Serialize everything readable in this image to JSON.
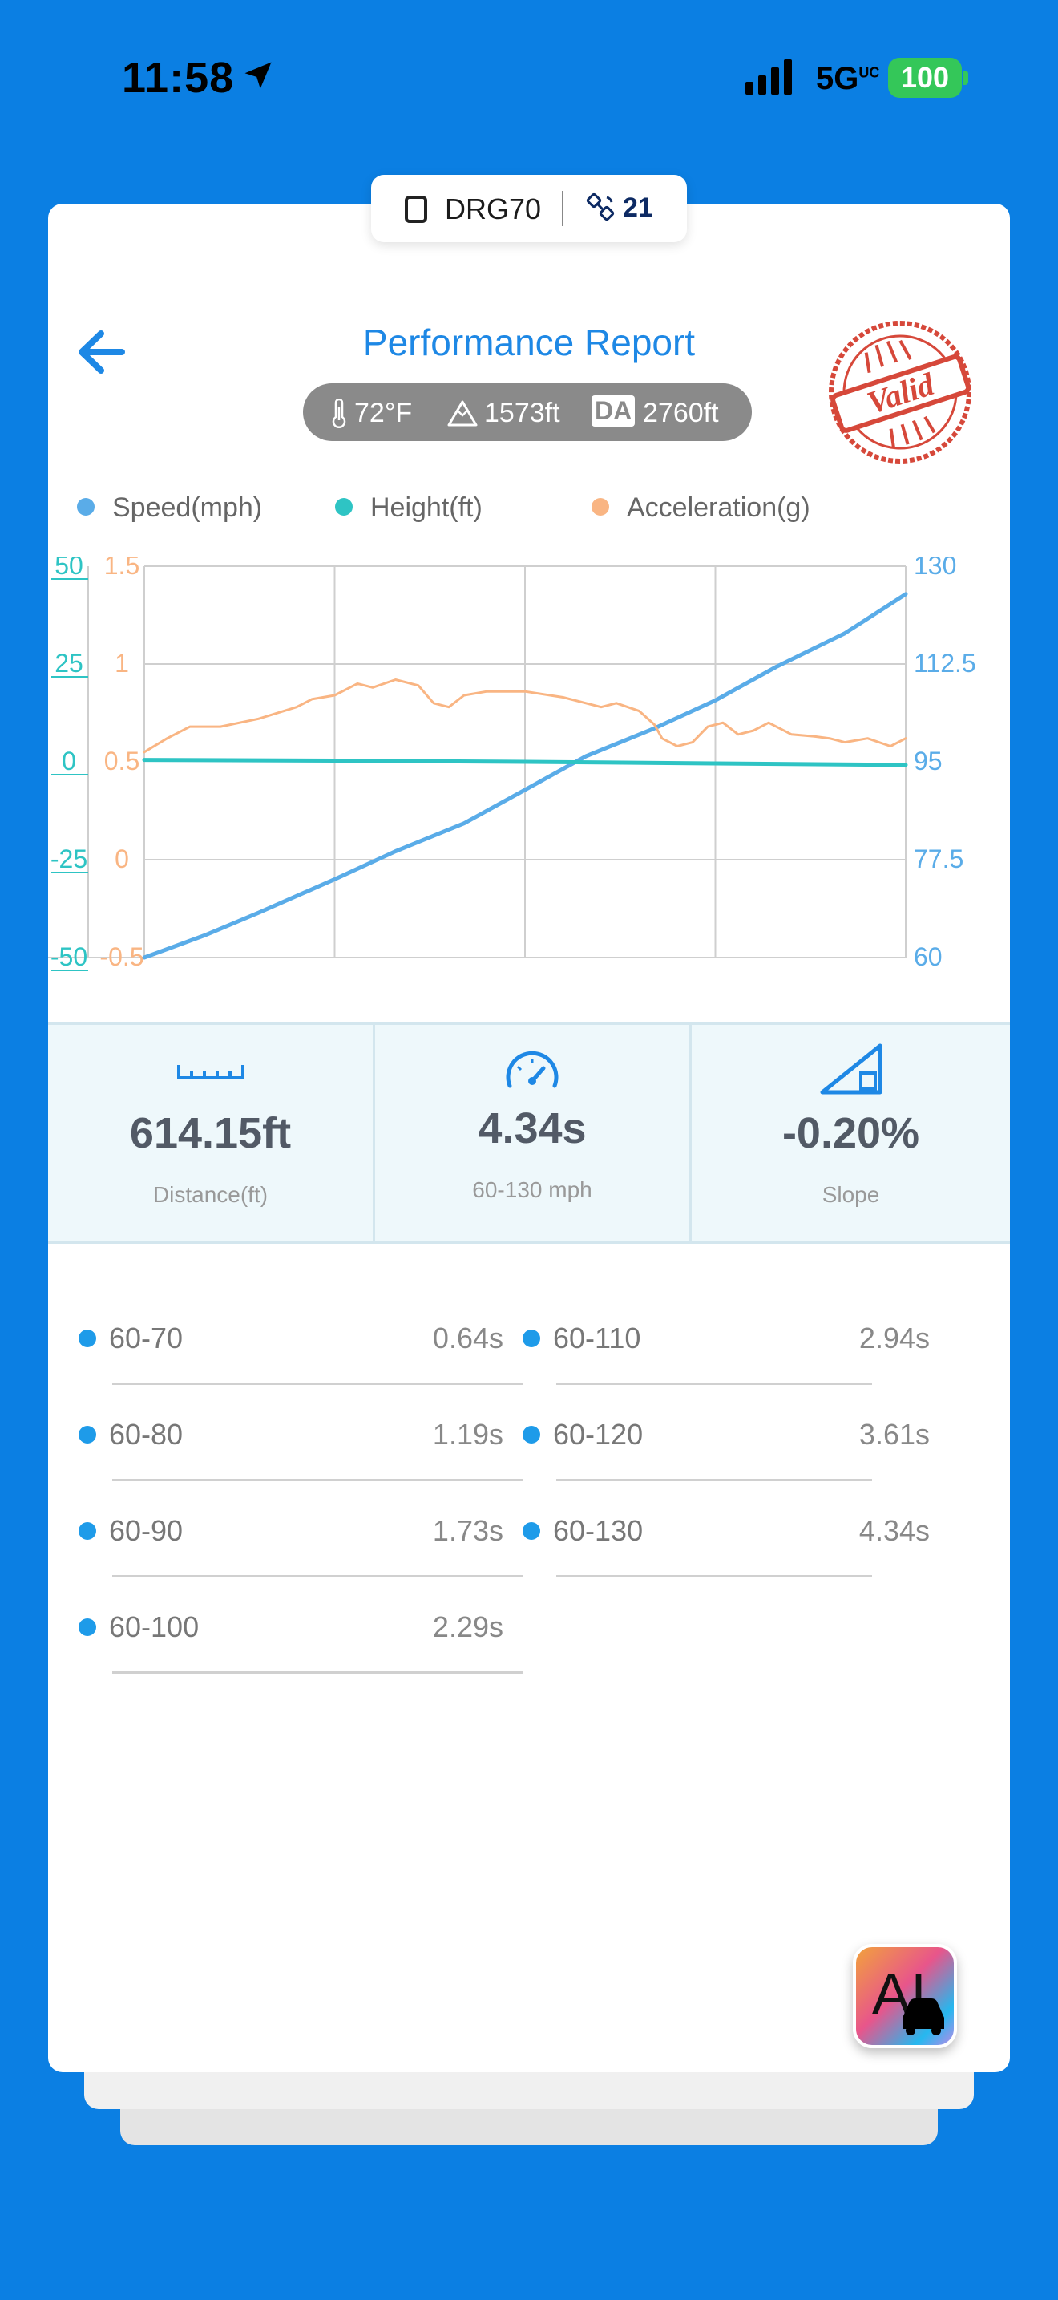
{
  "status_bar": {
    "time": "11:58",
    "network": "5G",
    "network_sup": "UC",
    "battery": "100"
  },
  "device": {
    "name": "DRG70",
    "satellites": "21"
  },
  "header": {
    "title": "Performance Report",
    "stamp_text": "Valid"
  },
  "conditions": {
    "temperature": "72°F",
    "altitude": "1573ft",
    "da_label": "DA",
    "density_altitude": "2760ft"
  },
  "legend": {
    "speed": "Speed(mph)",
    "height": "Height(ft)",
    "acceleration": "Acceleration(g)"
  },
  "colors": {
    "background": "#0B7FE3",
    "accent": "#1E88E5",
    "speed": "#5AACE8",
    "height": "#2EC4C4",
    "acceleration": "#F9B583"
  },
  "chart_data": {
    "type": "line",
    "x": [
      0.0,
      0.25,
      0.5,
      0.75,
      1.0
    ],
    "xlabel": "",
    "axes": {
      "height_left": {
        "ticks": [
          "50",
          "25",
          "0",
          "-25",
          "-50"
        ],
        "range": [
          -50,
          50
        ]
      },
      "accel_left": {
        "ticks": [
          "1.5",
          "1",
          "0.5",
          "0",
          "-0.5"
        ],
        "range": [
          -0.5,
          1.5
        ]
      },
      "speed_right": {
        "ticks": [
          "130",
          "112.5",
          "95",
          "77.5",
          "60"
        ],
        "range": [
          60,
          130
        ]
      }
    },
    "series": [
      {
        "name": "Speed(mph)",
        "axis": "speed_right",
        "values": [
          [
            0,
            60
          ],
          [
            0.08,
            64
          ],
          [
            0.15,
            68
          ],
          [
            0.25,
            74
          ],
          [
            0.33,
            79
          ],
          [
            0.42,
            84
          ],
          [
            0.5,
            90
          ],
          [
            0.58,
            96
          ],
          [
            0.67,
            101
          ],
          [
            0.75,
            106
          ],
          [
            0.83,
            112
          ],
          [
            0.92,
            118
          ],
          [
            1.0,
            125
          ]
        ]
      },
      {
        "name": "Height(ft)",
        "axis": "height_left",
        "values": [
          [
            0,
            0.5
          ],
          [
            0.25,
            0.3
          ],
          [
            0.5,
            0
          ],
          [
            0.75,
            -0.4
          ],
          [
            1.0,
            -0.8
          ]
        ]
      },
      {
        "name": "Acceleration(g)",
        "axis": "accel_left",
        "values": [
          [
            0,
            0.55
          ],
          [
            0.03,
            0.62
          ],
          [
            0.06,
            0.68
          ],
          [
            0.1,
            0.68
          ],
          [
            0.15,
            0.72
          ],
          [
            0.2,
            0.78
          ],
          [
            0.22,
            0.82
          ],
          [
            0.25,
            0.84
          ],
          [
            0.28,
            0.9
          ],
          [
            0.3,
            0.88
          ],
          [
            0.33,
            0.92
          ],
          [
            0.36,
            0.89
          ],
          [
            0.38,
            0.8
          ],
          [
            0.4,
            0.78
          ],
          [
            0.42,
            0.84
          ],
          [
            0.45,
            0.86
          ],
          [
            0.5,
            0.86
          ],
          [
            0.55,
            0.83
          ],
          [
            0.58,
            0.8
          ],
          [
            0.6,
            0.78
          ],
          [
            0.62,
            0.8
          ],
          [
            0.65,
            0.76
          ],
          [
            0.67,
            0.69
          ],
          [
            0.68,
            0.62
          ],
          [
            0.7,
            0.58
          ],
          [
            0.72,
            0.6
          ],
          [
            0.74,
            0.68
          ],
          [
            0.76,
            0.7
          ],
          [
            0.78,
            0.64
          ],
          [
            0.8,
            0.66
          ],
          [
            0.82,
            0.7
          ],
          [
            0.85,
            0.64
          ],
          [
            0.88,
            0.63
          ],
          [
            0.9,
            0.62
          ],
          [
            0.92,
            0.6
          ],
          [
            0.95,
            0.62
          ],
          [
            0.98,
            0.58
          ],
          [
            1.0,
            0.62
          ]
        ]
      }
    ],
    "grid": true
  },
  "stats": {
    "distance": {
      "value": "614.15ft",
      "label": "Distance(ft)"
    },
    "time": {
      "value": "4.34s",
      "label": "60-130 mph"
    },
    "slope": {
      "value": "-0.20%",
      "label": "Slope"
    }
  },
  "splits": [
    {
      "label": "60-70",
      "value": "0.64s"
    },
    {
      "label": "60-80",
      "value": "1.19s"
    },
    {
      "label": "60-90",
      "value": "1.73s"
    },
    {
      "label": "60-100",
      "value": "2.29s"
    },
    {
      "label": "60-110",
      "value": "2.94s"
    },
    {
      "label": "60-120",
      "value": "3.61s"
    },
    {
      "label": "60-130",
      "value": "4.34s"
    }
  ],
  "ai_button": {
    "label": "AI"
  }
}
